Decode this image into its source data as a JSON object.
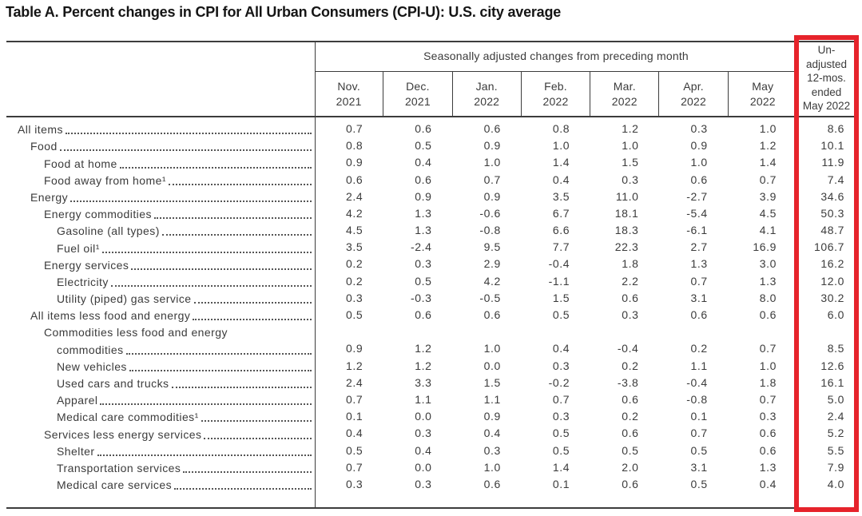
{
  "page": {
    "title": "Table A. Percent changes in CPI for All Urban Consumers (CPI-U): U.S. city average"
  },
  "table": {
    "group_header": "Seasonally adjusted changes from preceding month",
    "columns": [
      {
        "line1": "Nov.",
        "line2": "2021"
      },
      {
        "line1": "Dec.",
        "line2": "2021"
      },
      {
        "line1": "Jan.",
        "line2": "2022"
      },
      {
        "line1": "Feb.",
        "line2": "2022"
      },
      {
        "line1": "Mar.",
        "line2": "2022"
      },
      {
        "line1": "Apr.",
        "line2": "2022"
      },
      {
        "line1": "May",
        "line2": "2022"
      }
    ],
    "unadjusted_header": "Un-\nadjusted\n12-mos.\nended\nMay 2022",
    "highlight_color": "#e6232b",
    "rows": [
      {
        "label": "All items",
        "indent": 0,
        "values": [
          "0.7",
          "0.6",
          "0.6",
          "0.8",
          "1.2",
          "0.3",
          "1.0"
        ],
        "yoy": "8.6"
      },
      {
        "label": "Food",
        "indent": 1,
        "values": [
          "0.8",
          "0.5",
          "0.9",
          "1.0",
          "1.0",
          "0.9",
          "1.2"
        ],
        "yoy": "10.1"
      },
      {
        "label": "Food at home",
        "indent": 2,
        "values": [
          "0.9",
          "0.4",
          "1.0",
          "1.4",
          "1.5",
          "1.0",
          "1.4"
        ],
        "yoy": "11.9"
      },
      {
        "label": "Food away from home¹",
        "indent": 2,
        "values": [
          "0.6",
          "0.6",
          "0.7",
          "0.4",
          "0.3",
          "0.6",
          "0.7"
        ],
        "yoy": "7.4"
      },
      {
        "label": "Energy",
        "indent": 1,
        "values": [
          "2.4",
          "0.9",
          "0.9",
          "3.5",
          "11.0",
          "-2.7",
          "3.9"
        ],
        "yoy": "34.6"
      },
      {
        "label": "Energy commodities",
        "indent": 2,
        "values": [
          "4.2",
          "1.3",
          "-0.6",
          "6.7",
          "18.1",
          "-5.4",
          "4.5"
        ],
        "yoy": "50.3"
      },
      {
        "label": "Gasoline (all types)",
        "indent": 3,
        "values": [
          "4.5",
          "1.3",
          "-0.8",
          "6.6",
          "18.3",
          "-6.1",
          "4.1"
        ],
        "yoy": "48.7"
      },
      {
        "label": "Fuel oil¹",
        "indent": 3,
        "values": [
          "3.5",
          "-2.4",
          "9.5",
          "7.7",
          "22.3",
          "2.7",
          "16.9"
        ],
        "yoy": "106.7"
      },
      {
        "label": "Energy services",
        "indent": 2,
        "values": [
          "0.2",
          "0.3",
          "2.9",
          "-0.4",
          "1.8",
          "1.3",
          "3.0"
        ],
        "yoy": "16.2"
      },
      {
        "label": "Electricity",
        "indent": 3,
        "values": [
          "0.2",
          "0.5",
          "4.2",
          "-1.1",
          "2.2",
          "0.7",
          "1.3"
        ],
        "yoy": "12.0"
      },
      {
        "label": "Utility (piped) gas service",
        "indent": 3,
        "values": [
          "0.3",
          "-0.3",
          "-0.5",
          "1.5",
          "0.6",
          "3.1",
          "8.0"
        ],
        "yoy": "30.2"
      },
      {
        "label": "All items less food and energy",
        "indent": 1,
        "values": [
          "0.5",
          "0.6",
          "0.6",
          "0.5",
          "0.3",
          "0.6",
          "0.6"
        ],
        "yoy": "6.0"
      },
      {
        "label": "Commodities less food and energy",
        "label2": "commodities",
        "indent": 2,
        "values": [
          "0.9",
          "1.2",
          "1.0",
          "0.4",
          "-0.4",
          "0.2",
          "0.7"
        ],
        "yoy": "8.5"
      },
      {
        "label": "New vehicles",
        "indent": 3,
        "values": [
          "1.2",
          "1.2",
          "0.0",
          "0.3",
          "0.2",
          "1.1",
          "1.0"
        ],
        "yoy": "12.6"
      },
      {
        "label": "Used cars and trucks",
        "indent": 3,
        "values": [
          "2.4",
          "3.3",
          "1.5",
          "-0.2",
          "-3.8",
          "-0.4",
          "1.8"
        ],
        "yoy": "16.1"
      },
      {
        "label": "Apparel",
        "indent": 3,
        "values": [
          "0.7",
          "1.1",
          "1.1",
          "0.7",
          "0.6",
          "-0.8",
          "0.7"
        ],
        "yoy": "5.0"
      },
      {
        "label": "Medical care commodities¹",
        "indent": 3,
        "values": [
          "0.1",
          "0.0",
          "0.9",
          "0.3",
          "0.2",
          "0.1",
          "0.3"
        ],
        "yoy": "2.4"
      },
      {
        "label": "Services less energy services",
        "indent": 2,
        "values": [
          "0.4",
          "0.3",
          "0.4",
          "0.5",
          "0.6",
          "0.7",
          "0.6"
        ],
        "yoy": "5.2"
      },
      {
        "label": "Shelter",
        "indent": 3,
        "values": [
          "0.5",
          "0.4",
          "0.3",
          "0.5",
          "0.5",
          "0.5",
          "0.6"
        ],
        "yoy": "5.5"
      },
      {
        "label": "Transportation services",
        "indent": 3,
        "values": [
          "0.7",
          "0.0",
          "1.0",
          "1.4",
          "2.0",
          "3.1",
          "1.3"
        ],
        "yoy": "7.9"
      },
      {
        "label": "Medical care services",
        "indent": 3,
        "values": [
          "0.3",
          "0.3",
          "0.6",
          "0.1",
          "0.6",
          "0.5",
          "0.4"
        ],
        "yoy": "4.0"
      }
    ]
  }
}
